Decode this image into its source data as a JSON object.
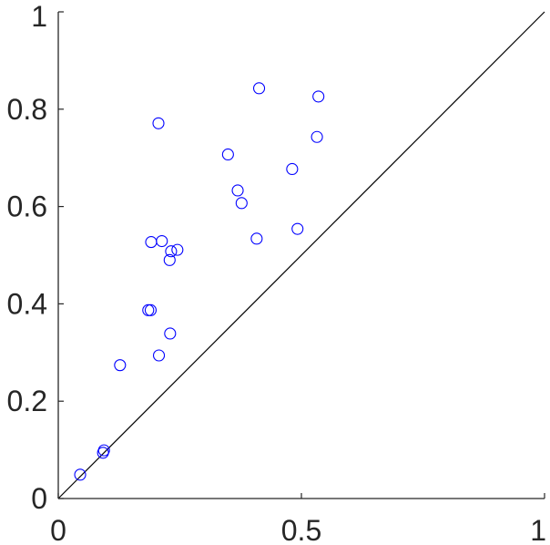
{
  "chart_data": {
    "type": "scatter",
    "title": "",
    "xlabel": "",
    "ylabel": "",
    "xlim": [
      0,
      1
    ],
    "ylim": [
      0,
      1
    ],
    "x_ticks": [
      0,
      0.5,
      1
    ],
    "x_tick_labels": [
      "0",
      "0.5",
      "1"
    ],
    "y_ticks": [
      0,
      0.2,
      0.4,
      0.6,
      0.8,
      1
    ],
    "y_tick_labels": [
      "0",
      "0.2",
      "0.4",
      "0.6",
      "0.8",
      "1"
    ],
    "grid": false,
    "reference_line": {
      "from": [
        0,
        0
      ],
      "to": [
        1,
        1
      ],
      "color": "#000000"
    },
    "marker": "open-circle",
    "marker_color": "#0000ff",
    "series": [
      {
        "points": [
          {
            "x": 0.045,
            "y": 0.049
          },
          {
            "x": 0.092,
            "y": 0.094
          },
          {
            "x": 0.094,
            "y": 0.099
          },
          {
            "x": 0.127,
            "y": 0.274
          },
          {
            "x": 0.185,
            "y": 0.387
          },
          {
            "x": 0.19,
            "y": 0.387
          },
          {
            "x": 0.191,
            "y": 0.527
          },
          {
            "x": 0.207,
            "y": 0.294
          },
          {
            "x": 0.206,
            "y": 0.771
          },
          {
            "x": 0.213,
            "y": 0.529
          },
          {
            "x": 0.229,
            "y": 0.49
          },
          {
            "x": 0.23,
            "y": 0.339
          },
          {
            "x": 0.232,
            "y": 0.508
          },
          {
            "x": 0.245,
            "y": 0.511
          },
          {
            "x": 0.349,
            "y": 0.707
          },
          {
            "x": 0.369,
            "y": 0.633
          },
          {
            "x": 0.377,
            "y": 0.607
          },
          {
            "x": 0.408,
            "y": 0.534
          },
          {
            "x": 0.413,
            "y": 0.843
          },
          {
            "x": 0.481,
            "y": 0.677
          },
          {
            "x": 0.492,
            "y": 0.554
          },
          {
            "x": 0.532,
            "y": 0.743
          },
          {
            "x": 0.535,
            "y": 0.826
          }
        ]
      }
    ]
  }
}
